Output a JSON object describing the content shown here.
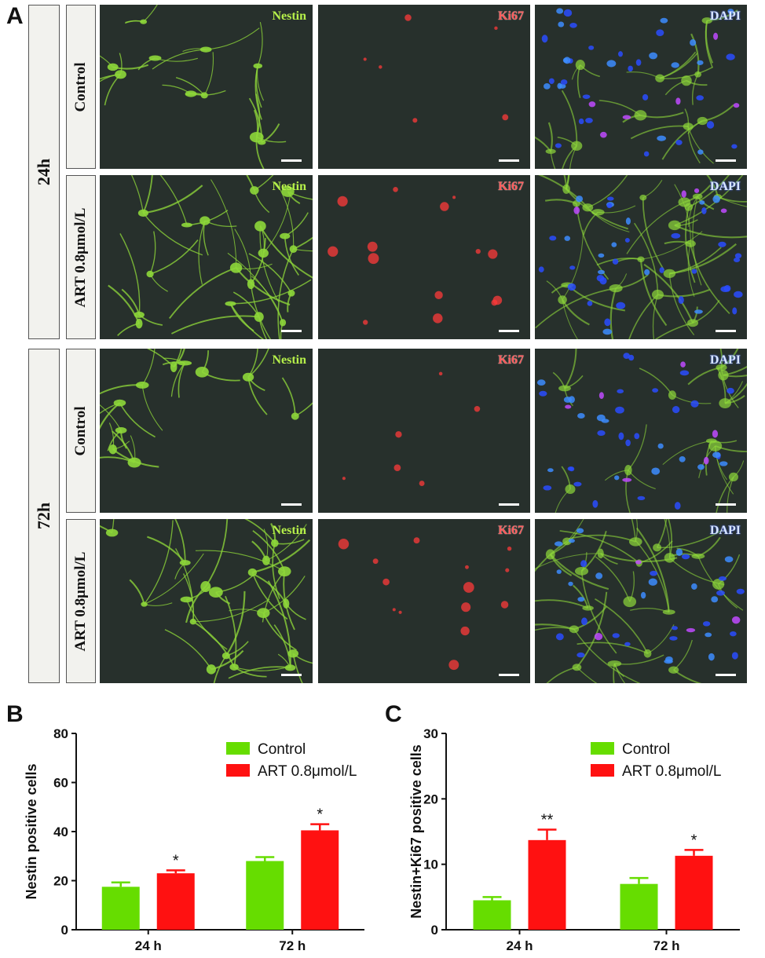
{
  "figure": {
    "panel_a": {
      "letter": "A",
      "time_groups": [
        "24h",
        "72h"
      ],
      "row_labels": [
        "Control",
        "ART 0.8μmol/L",
        "Control",
        "ART 0.8μmol/L"
      ],
      "channels": [
        "Nestin",
        "Ki67",
        "DAPI"
      ]
    },
    "panel_b": {
      "letter": "B"
    },
    "panel_c": {
      "letter": "C"
    }
  },
  "colors": {
    "control": "#66dd00",
    "art": "#ff1111",
    "micro_bg": "#27302c",
    "nestin": "#8ed83a",
    "ki67": "#ff3a3a",
    "dapi": "#2a4cff"
  },
  "chart_data": [
    {
      "type": "bar",
      "panel": "B",
      "categories": [
        "24 h",
        "72 h"
      ],
      "series": [
        {
          "name": "Control",
          "values": [
            17.5,
            28
          ],
          "errors": [
            1.8,
            1.6
          ],
          "sig": [
            "",
            ""
          ]
        },
        {
          "name": "ART 0.8μmol/L",
          "values": [
            23,
            40.5
          ],
          "errors": [
            1.2,
            2.5
          ],
          "sig": [
            "*",
            "*"
          ]
        }
      ],
      "ylabel": "Nestin positive cells",
      "ylim": [
        0,
        80
      ],
      "yticks": [
        0,
        20,
        40,
        60,
        80
      ],
      "legend": "top-right"
    },
    {
      "type": "bar",
      "panel": "C",
      "categories": [
        "24 h",
        "72 h"
      ],
      "series": [
        {
          "name": "Control",
          "values": [
            4.5,
            7
          ],
          "errors": [
            0.5,
            0.9
          ],
          "sig": [
            "",
            ""
          ]
        },
        {
          "name": "ART 0.8μmol/L",
          "values": [
            13.7,
            11.3
          ],
          "errors": [
            1.6,
            0.9
          ],
          "sig": [
            "**",
            "*"
          ]
        }
      ],
      "ylabel": "Nestin+Ki67 positive cells",
      "ylim": [
        0,
        30
      ],
      "yticks": [
        0,
        10,
        20,
        30
      ],
      "legend": "top-right"
    }
  ]
}
